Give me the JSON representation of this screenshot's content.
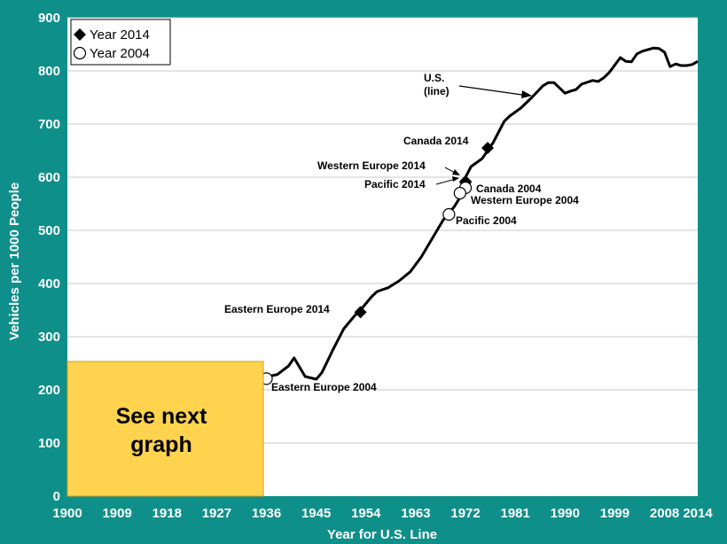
{
  "colors": {
    "background": "#0f8f8a",
    "plot_area": "#ffffff",
    "gridline": "#c8c8c8",
    "line": "#000000",
    "note_box": "#ffd34d"
  },
  "chart_data": {
    "type": "line",
    "xlabel": "Year for U.S. Line",
    "ylabel": "Vehicles per 1000 People",
    "xlim": [
      1900,
      2014
    ],
    "ylim": [
      0,
      900
    ],
    "x_ticks": [
      "1900",
      "1909",
      "1918",
      "1927",
      "1936",
      "1945",
      "1954",
      "1963",
      "1972",
      "1981",
      "1990",
      "1999",
      "2008",
      "2014"
    ],
    "y_ticks": [
      "0",
      "100",
      "200",
      "300",
      "400",
      "500",
      "600",
      "700",
      "800",
      "900"
    ],
    "grid": "horizontal",
    "legend_position": "top-left",
    "legend": [
      {
        "label": "Year 2014",
        "marker": "diamond-filled"
      },
      {
        "label": "Year 2004",
        "marker": "circle-open"
      }
    ],
    "series": [
      {
        "type": "line",
        "x": [
          1935,
          1938,
          1940,
          1941,
          1943,
          1945,
          1946,
          1947,
          1948,
          1950,
          1952,
          1953,
          1955,
          1956,
          1958,
          1960,
          1962,
          1964,
          1966,
          1968,
          1970,
          1971,
          1972,
          1973,
          1975,
          1977,
          1979,
          1980,
          1982,
          1984,
          1986,
          1987,
          1988,
          1990,
          1991,
          1992,
          1993,
          1995,
          1996,
          1997,
          1998,
          2000,
          2001,
          2002,
          2003,
          2004,
          2006,
          2007,
          2008,
          2009,
          2010,
          2011,
          2012,
          2013,
          2014
        ],
        "y": [
          222,
          229,
          245,
          260,
          225,
          220,
          232,
          253,
          275,
          315,
          340,
          350,
          375,
          385,
          392,
          405,
          422,
          450,
          485,
          520,
          545,
          562,
          600,
          620,
          635,
          665,
          705,
          715,
          730,
          750,
          772,
          778,
          778,
          758,
          762,
          765,
          775,
          782,
          780,
          787,
          797,
          825,
          818,
          817,
          832,
          837,
          843,
          842,
          835,
          808,
          813,
          810,
          810,
          812,
          818
        ]
      }
    ],
    "points": [
      {
        "label": "Eastern Europe 2014",
        "x": 1953,
        "y": 346,
        "year": "2014"
      },
      {
        "label": "Eastern Europe 2004",
        "x": 1936,
        "y": 221,
        "year": "2004"
      },
      {
        "label": "Canada 2014",
        "x": 1976,
        "y": 655,
        "year": "2014"
      },
      {
        "label": "Western Europe 2014",
        "x": 1972,
        "y": 592,
        "year": "2014"
      },
      {
        "label": "Pacific 2014",
        "x": 1972,
        "y": 590,
        "year": "2014"
      },
      {
        "label": "Canada 2004",
        "x": 1972,
        "y": 580,
        "year": "2004"
      },
      {
        "label": "Western Europe 2004",
        "x": 1971,
        "y": 570,
        "year": "2004"
      },
      {
        "label": "Pacific 2004",
        "x": 1969,
        "y": 530,
        "year": "2004"
      }
    ],
    "annotations": [
      {
        "name": "us-line-label",
        "lines": [
          "U.S.",
          "(line)"
        ]
      },
      {
        "name": "canada-2014-label",
        "text": "Canada 2014"
      },
      {
        "name": "western-europe-2014-label",
        "text": "Western Europe 2014"
      },
      {
        "name": "pacific-2014-label",
        "text": "Pacific 2014"
      },
      {
        "name": "canada-2004-label",
        "text": "Canada 2004"
      },
      {
        "name": "western-europe-2004-label",
        "text": "Western Europe 2004"
      },
      {
        "name": "pacific-2004-label",
        "text": "Pacific 2004"
      },
      {
        "name": "eastern-europe-2014-label",
        "text": "Eastern Europe 2014"
      },
      {
        "name": "eastern-europe-2004-label",
        "text": "Eastern Europe 2004"
      }
    ],
    "note_box": {
      "lines": [
        "See next",
        "graph"
      ]
    }
  }
}
